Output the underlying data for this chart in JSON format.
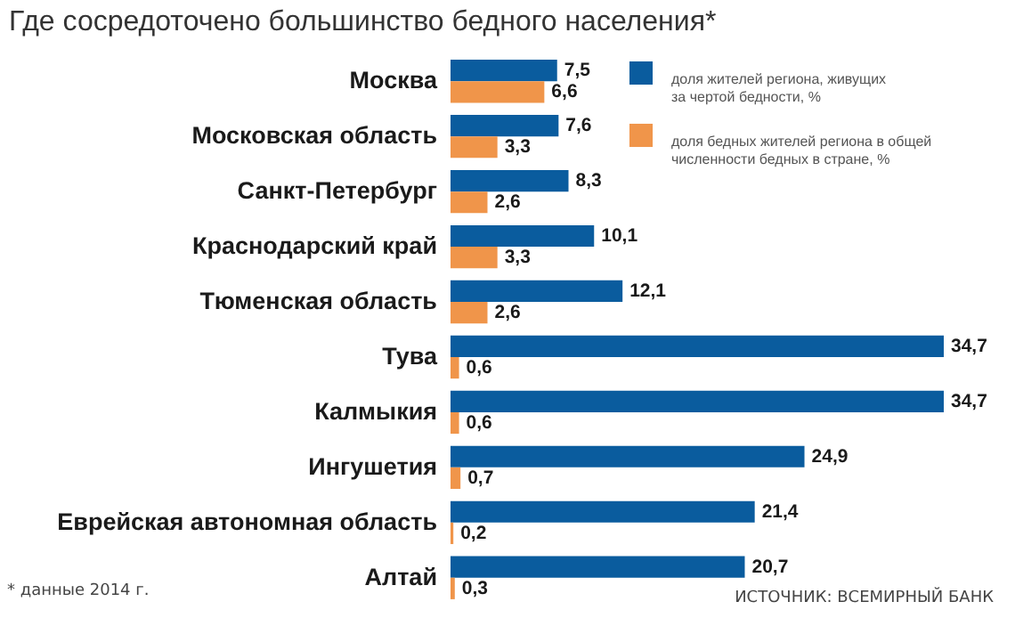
{
  "chart_data": {
    "type": "bar",
    "orientation": "horizontal",
    "title": "Где сосредоточено большинство бедного населения*",
    "categories": [
      "Москва",
      "Московская область",
      "Санкт-Петербург",
      "Краснодарский край",
      "Тюменская область",
      "Тува",
      "Калмыкия",
      "Ингушетия",
      "Еврейская автономная область",
      "Алтай"
    ],
    "series": [
      {
        "name": "доля жителей региона, живущих за чертой бедности, %",
        "color": "#0a5c9e",
        "values": [
          7.5,
          7.6,
          8.3,
          10.1,
          12.1,
          34.7,
          34.7,
          24.9,
          21.4,
          20.7
        ],
        "value_labels": [
          "7,5",
          "7,6",
          "8,3",
          "10,1",
          "12,1",
          "34,7",
          "34,7",
          "24,9",
          "21,4",
          "20,7"
        ]
      },
      {
        "name": "доля бедных жителей региона в общей численности бедных в стране, %",
        "color": "#f0954a",
        "values": [
          6.6,
          3.3,
          2.6,
          3.3,
          2.6,
          0.6,
          0.6,
          0.7,
          0.2,
          0.3
        ],
        "value_labels": [
          "6,6",
          "3,3",
          "2,6",
          "3,3",
          "2,6",
          "0,6",
          "0,6",
          "0,7",
          "0,2",
          "0,3"
        ]
      }
    ],
    "legend": "top right",
    "annotations": [
      "* данные 2014 г.",
      "ИСТОЧНИК: ВСЕМИРНЫЙ БАНК"
    ]
  }
}
